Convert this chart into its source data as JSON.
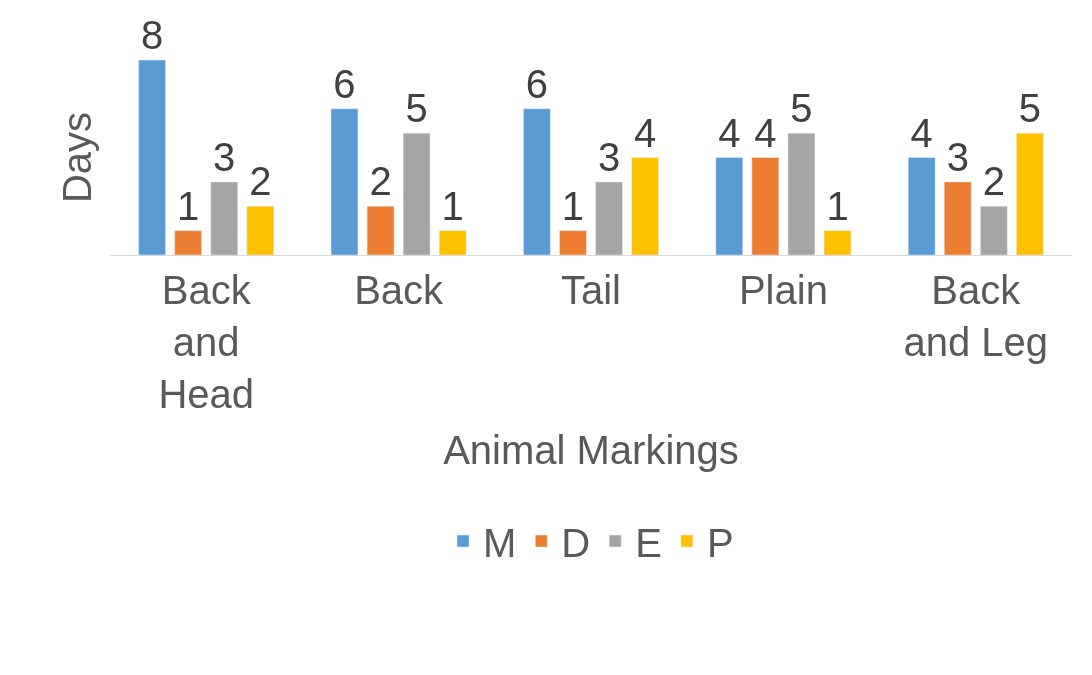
{
  "chart_data": {
    "type": "bar",
    "xlabel": "Animal Markings",
    "ylabel": "Days",
    "categories": [
      "Back and Head",
      "Back",
      "Tail",
      "Plain",
      "Back and Leg"
    ],
    "series": [
      {
        "name": "M",
        "color": "#5b9bd5",
        "values": [
          8,
          6,
          6,
          4,
          4
        ]
      },
      {
        "name": "D",
        "color": "#ed7d31",
        "values": [
          1,
          2,
          1,
          4,
          3
        ]
      },
      {
        "name": "E",
        "color": "#a5a5a5",
        "values": [
          3,
          5,
          3,
          5,
          2
        ]
      },
      {
        "name": "P",
        "color": "#ffc000",
        "values": [
          2,
          1,
          4,
          1,
          5
        ]
      }
    ],
    "data_labels": true,
    "legend": "bottom"
  }
}
